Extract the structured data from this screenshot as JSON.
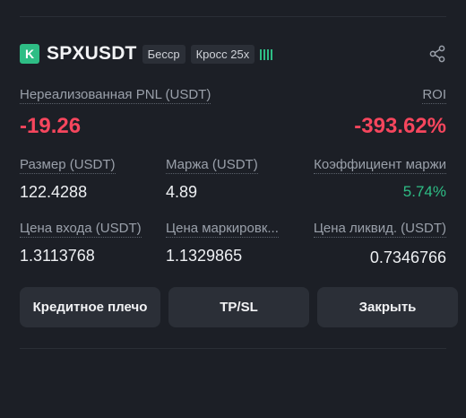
{
  "position": {
    "logo_letter": "K",
    "symbol": "SPXUSDT",
    "tags": [
      "Бесср",
      "Кросс 25x"
    ],
    "icons": {
      "strength": "signal-bars-icon",
      "share": "share-icon"
    },
    "colors": {
      "negative": "#f6465d",
      "positive": "#2ebd85",
      "panel": "#1c1f26",
      "button": "#2b2f37"
    }
  },
  "pnl": {
    "label": "Нереализованная PNL (USDT)",
    "value": "-19.26",
    "roi_label": "ROI",
    "roi_value": "-393.62%"
  },
  "stats": {
    "size_label": "Размер (USDT)",
    "size_value": "122.4288",
    "margin_label": "Маржа (USDT)",
    "margin_value": "4.89",
    "ratio_label": "Коэффициент маржи",
    "ratio_value": "5.74%",
    "entry_label": "Цена входа (USDT)",
    "entry_value": "1.3113768",
    "mark_label": "Цена маркировк...",
    "mark_value": "1.1329865",
    "liq_label": "Цена ликвид. (USDT)",
    "liq_value": "0.7346766"
  },
  "actions": {
    "leverage": "Кредитное плечо",
    "tpsl": "TP/SL",
    "close": "Закрыть"
  }
}
